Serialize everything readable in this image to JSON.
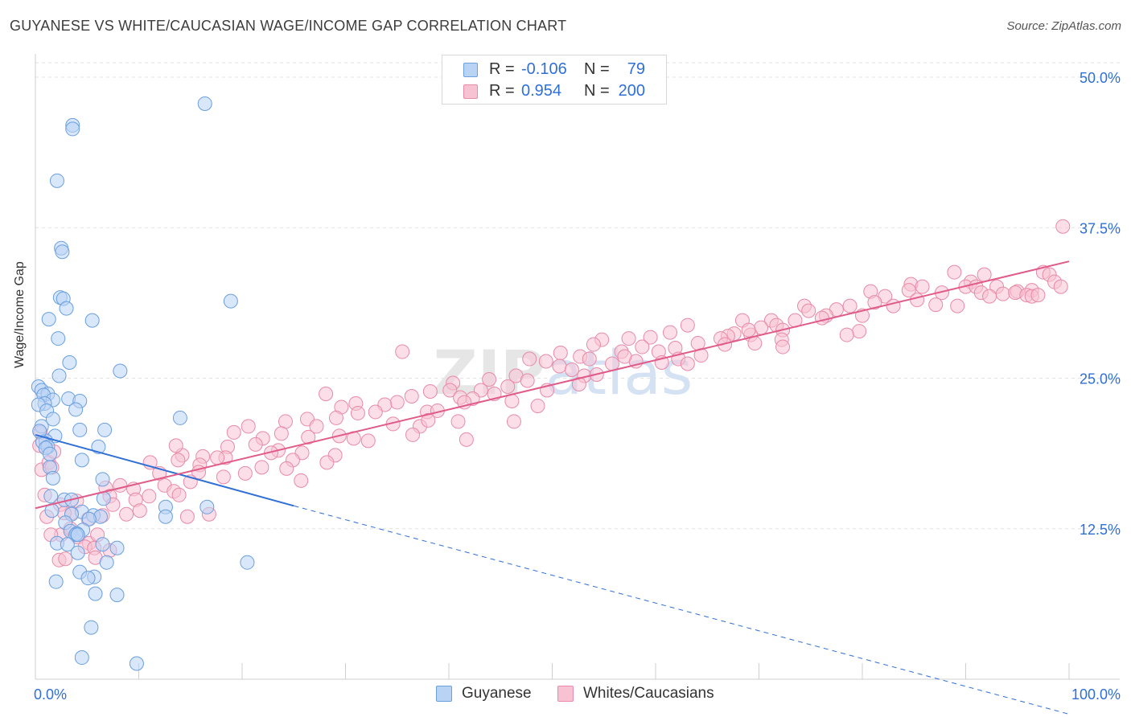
{
  "chart_data": {
    "type": "scatter",
    "title": "GUYANESE VS WHITE/CAUCASIAN WAGE/INCOME GAP CORRELATION CHART",
    "source": "Source: ZipAtlas.com",
    "xlabel": "",
    "ylabel": "Wage/Income Gap",
    "xlim": [
      0,
      100
    ],
    "ylim": [
      0,
      50
    ],
    "x_tick_labels": [
      "0.0%",
      "100.0%"
    ],
    "y_ticks": [
      12.5,
      25.0,
      37.5,
      50.0
    ],
    "y_tick_labels": [
      "12.5%",
      "25.0%",
      "37.5%",
      "50.0%"
    ],
    "watermark": "ZIPatlas",
    "legend": {
      "rows": [
        {
          "r_label": "R =",
          "r_value": "-0.106",
          "n_label": "N =",
          "n_value": "79"
        },
        {
          "r_label": "R =",
          "r_value": "0.954",
          "n_label": "N =",
          "n_value": "200"
        }
      ]
    },
    "series": [
      {
        "name": "Guyanese",
        "color": "#6a9fe0",
        "fill": "#b9d3f5",
        "trend": {
          "x": [
            0,
            25
          ],
          "y": [
            20.3,
            14.4
          ],
          "dashed_to": [
            100,
            -2.9
          ]
        },
        "points": [
          [
            16.4,
            47.8
          ],
          [
            3.6,
            46.0
          ],
          [
            3.6,
            45.7
          ],
          [
            2.1,
            41.4
          ],
          [
            2.5,
            35.8
          ],
          [
            2.6,
            35.5
          ],
          [
            2.4,
            31.7
          ],
          [
            2.7,
            31.6
          ],
          [
            18.9,
            31.4
          ],
          [
            3.0,
            30.8
          ],
          [
            1.3,
            29.9
          ],
          [
            5.5,
            29.8
          ],
          [
            2.2,
            28.3
          ],
          [
            3.3,
            26.3
          ],
          [
            8.2,
            25.6
          ],
          [
            2.3,
            25.2
          ],
          [
            0.3,
            24.3
          ],
          [
            0.6,
            24.0
          ],
          [
            1.2,
            23.7
          ],
          [
            0.8,
            23.6
          ],
          [
            3.2,
            23.3
          ],
          [
            1.7,
            23.2
          ],
          [
            4.3,
            23.1
          ],
          [
            0.9,
            22.9
          ],
          [
            0.3,
            22.8
          ],
          [
            3.9,
            22.4
          ],
          [
            1.1,
            22.3
          ],
          [
            14.0,
            21.7
          ],
          [
            1.7,
            21.6
          ],
          [
            0.6,
            21.0
          ],
          [
            4.3,
            20.7
          ],
          [
            6.7,
            20.7
          ],
          [
            1.9,
            20.2
          ],
          [
            1.0,
            19.8
          ],
          [
            0.7,
            19.7
          ],
          [
            1.2,
            19.3
          ],
          [
            6.1,
            19.3
          ],
          [
            1.0,
            19.2
          ],
          [
            1.4,
            18.7
          ],
          [
            4.5,
            18.2
          ],
          [
            1.4,
            17.6
          ],
          [
            6.5,
            16.6
          ],
          [
            1.7,
            16.7
          ],
          [
            1.5,
            15.2
          ],
          [
            6.6,
            15.0
          ],
          [
            2.8,
            14.9
          ],
          [
            3.5,
            14.9
          ],
          [
            12.6,
            14.3
          ],
          [
            16.6,
            14.3
          ],
          [
            1.6,
            14.0
          ],
          [
            4.5,
            13.9
          ],
          [
            3.5,
            13.7
          ],
          [
            5.6,
            13.6
          ],
          [
            6.3,
            13.5
          ],
          [
            5.2,
            13.3
          ],
          [
            12.6,
            13.5
          ],
          [
            2.9,
            13.0
          ],
          [
            3.4,
            12.3
          ],
          [
            4.6,
            12.4
          ],
          [
            4.0,
            12.1
          ],
          [
            3.9,
            12.0
          ],
          [
            4.1,
            12.0
          ],
          [
            2.1,
            11.3
          ],
          [
            3.1,
            11.2
          ],
          [
            6.5,
            11.2
          ],
          [
            7.9,
            10.9
          ],
          [
            4.1,
            10.5
          ],
          [
            6.9,
            9.7
          ],
          [
            20.5,
            9.7
          ],
          [
            4.3,
            8.9
          ],
          [
            5.7,
            8.5
          ],
          [
            5.1,
            8.4
          ],
          [
            2.0,
            8.1
          ],
          [
            5.8,
            7.1
          ],
          [
            7.9,
            7.0
          ],
          [
            5.4,
            4.3
          ],
          [
            4.5,
            1.8
          ],
          [
            9.8,
            1.3
          ],
          [
            0.4,
            20.6
          ]
        ]
      },
      {
        "name": "Whites/Caucasians",
        "color": "#e88aa8",
        "fill": "#f7c3d3",
        "trend": {
          "x": [
            0,
            100
          ],
          "y": [
            14.2,
            34.7
          ]
        },
        "points": [
          [
            99.4,
            37.6
          ],
          [
            88.9,
            33.8
          ],
          [
            91.8,
            33.6
          ],
          [
            97.5,
            33.8
          ],
          [
            98.1,
            33.6
          ],
          [
            90.5,
            33.0
          ],
          [
            98.6,
            33.0
          ],
          [
            84.7,
            32.8
          ],
          [
            85.8,
            32.6
          ],
          [
            90.0,
            32.6
          ],
          [
            91.0,
            32.6
          ],
          [
            93.0,
            32.6
          ],
          [
            95.0,
            32.2
          ],
          [
            96.4,
            32.3
          ],
          [
            84.5,
            32.3
          ],
          [
            80.8,
            32.2
          ],
          [
            87.7,
            32.1
          ],
          [
            93.6,
            32.0
          ],
          [
            94.8,
            32.1
          ],
          [
            91.5,
            32.1
          ],
          [
            92.3,
            31.8
          ],
          [
            95.9,
            31.9
          ],
          [
            96.4,
            31.8
          ],
          [
            97.0,
            31.9
          ],
          [
            82.2,
            31.8
          ],
          [
            85.3,
            31.5
          ],
          [
            99.2,
            32.6
          ],
          [
            89.2,
            31.0
          ],
          [
            81.2,
            31.3
          ],
          [
            78.8,
            31.0
          ],
          [
            77.5,
            30.7
          ],
          [
            74.4,
            31.0
          ],
          [
            74.8,
            30.6
          ],
          [
            83.0,
            31.0
          ],
          [
            87.1,
            31.1
          ],
          [
            80.0,
            30.2
          ],
          [
            76.5,
            30.2
          ],
          [
            76.1,
            30.0
          ],
          [
            73.5,
            29.8
          ],
          [
            71.2,
            29.8
          ],
          [
            68.4,
            29.8
          ],
          [
            71.7,
            29.4
          ],
          [
            70.2,
            29.2
          ],
          [
            79.7,
            28.9
          ],
          [
            78.5,
            28.6
          ],
          [
            72.3,
            29.0
          ],
          [
            63.1,
            29.4
          ],
          [
            61.4,
            28.8
          ],
          [
            67.6,
            28.7
          ],
          [
            69.2,
            28.6
          ],
          [
            67.0,
            28.5
          ],
          [
            66.3,
            28.3
          ],
          [
            72.2,
            28.2
          ],
          [
            59.5,
            28.4
          ],
          [
            57.4,
            28.3
          ],
          [
            54.8,
            28.2
          ],
          [
            61.9,
            27.5
          ],
          [
            66.7,
            27.8
          ],
          [
            69.6,
            27.9
          ],
          [
            72.3,
            27.6
          ],
          [
            54.0,
            27.8
          ],
          [
            58.7,
            27.6
          ],
          [
            60.3,
            27.2
          ],
          [
            64.4,
            26.9
          ],
          [
            62.2,
            26.6
          ],
          [
            50.8,
            27.1
          ],
          [
            56.7,
            27.2
          ],
          [
            52.7,
            26.8
          ],
          [
            53.6,
            26.6
          ],
          [
            47.8,
            26.6
          ],
          [
            60.6,
            26.3
          ],
          [
            58.1,
            26.4
          ],
          [
            63.1,
            26.2
          ],
          [
            55.8,
            26.2
          ],
          [
            50.7,
            26.0
          ],
          [
            49.4,
            26.4
          ],
          [
            51.9,
            25.7
          ],
          [
            53.1,
            25.2
          ],
          [
            54.3,
            25.3
          ],
          [
            46.5,
            25.2
          ],
          [
            47.6,
            24.8
          ],
          [
            43.9,
            24.9
          ],
          [
            40.4,
            24.6
          ],
          [
            44.4,
            23.7
          ],
          [
            45.7,
            24.3
          ],
          [
            49.5,
            24.0
          ],
          [
            43.1,
            24.0
          ],
          [
            40.1,
            24.0
          ],
          [
            38.2,
            23.9
          ],
          [
            36.4,
            23.5
          ],
          [
            41.1,
            23.4
          ],
          [
            42.3,
            23.3
          ],
          [
            46.1,
            23.1
          ],
          [
            41.5,
            23.0
          ],
          [
            35.0,
            23.0
          ],
          [
            31.0,
            22.9
          ],
          [
            33.8,
            22.8
          ],
          [
            29.6,
            22.6
          ],
          [
            37.9,
            22.2
          ],
          [
            38.9,
            22.3
          ],
          [
            32.9,
            22.2
          ],
          [
            31.2,
            22.1
          ],
          [
            29.1,
            21.7
          ],
          [
            26.3,
            21.6
          ],
          [
            24.2,
            21.4
          ],
          [
            34.6,
            21.2
          ],
          [
            37.2,
            21.0
          ],
          [
            38.0,
            21.5
          ],
          [
            40.9,
            21.4
          ],
          [
            46.3,
            21.4
          ],
          [
            27.2,
            21.0
          ],
          [
            23.8,
            20.4
          ],
          [
            29.4,
            20.2
          ],
          [
            36.5,
            20.3
          ],
          [
            30.8,
            20.0
          ],
          [
            32.2,
            19.8
          ],
          [
            26.4,
            20.1
          ],
          [
            22.0,
            20.0
          ],
          [
            21.3,
            19.5
          ],
          [
            18.6,
            19.3
          ],
          [
            23.5,
            19.0
          ],
          [
            18.4,
            18.4
          ],
          [
            25.8,
            18.8
          ],
          [
            22.8,
            18.8
          ],
          [
            29.0,
            18.6
          ],
          [
            24.9,
            18.2
          ],
          [
            28.2,
            18.0
          ],
          [
            16.2,
            18.5
          ],
          [
            14.2,
            18.6
          ],
          [
            13.8,
            18.2
          ],
          [
            11.1,
            18.0
          ],
          [
            17.6,
            18.4
          ],
          [
            13.6,
            19.4
          ],
          [
            15.9,
            17.8
          ],
          [
            12.0,
            17.1
          ],
          [
            15.8,
            17.2
          ],
          [
            20.3,
            17.1
          ],
          [
            18.2,
            16.8
          ],
          [
            25.7,
            16.5
          ],
          [
            24.3,
            17.5
          ],
          [
            21.9,
            17.6
          ],
          [
            8.2,
            16.1
          ],
          [
            12.5,
            16.1
          ],
          [
            15.0,
            16.4
          ],
          [
            6.8,
            15.9
          ],
          [
            9.5,
            15.8
          ],
          [
            13.4,
            15.6
          ],
          [
            9.7,
            14.9
          ],
          [
            7.2,
            15.2
          ],
          [
            11.0,
            15.2
          ],
          [
            13.9,
            15.3
          ],
          [
            4.0,
            14.8
          ],
          [
            7.5,
            14.5
          ],
          [
            10.1,
            14.0
          ],
          [
            3.5,
            13.8
          ],
          [
            6.5,
            13.6
          ],
          [
            8.8,
            13.7
          ],
          [
            5.1,
            13.3
          ],
          [
            16.8,
            13.7
          ],
          [
            14.7,
            13.5
          ],
          [
            2.5,
            12.0
          ],
          [
            1.5,
            12.0
          ],
          [
            4.1,
            11.8
          ],
          [
            5.2,
            11.3
          ],
          [
            4.8,
            11.0
          ],
          [
            5.7,
            10.9
          ],
          [
            5.8,
            10.1
          ],
          [
            7.2,
            10.7
          ],
          [
            2.3,
            9.9
          ],
          [
            2.9,
            10.0
          ],
          [
            0.6,
            17.4
          ],
          [
            0.9,
            15.3
          ],
          [
            1.3,
            18.0
          ],
          [
            1.6,
            17.6
          ],
          [
            1.8,
            18.9
          ],
          [
            0.5,
            20.5
          ],
          [
            2.4,
            14.5
          ],
          [
            1.1,
            13.5
          ],
          [
            0.4,
            19.4
          ],
          [
            3.4,
            12.5
          ],
          [
            6.0,
            12.0
          ],
          [
            2.8,
            13.8
          ],
          [
            19.2,
            20.5
          ],
          [
            20.6,
            21.0
          ],
          [
            52.6,
            24.5
          ],
          [
            35.5,
            27.2
          ],
          [
            64.1,
            27.9
          ],
          [
            69.0,
            29.0
          ],
          [
            57.0,
            26.8
          ],
          [
            48.6,
            22.7
          ],
          [
            41.7,
            19.9
          ],
          [
            28.1,
            23.7
          ]
        ]
      }
    ]
  }
}
